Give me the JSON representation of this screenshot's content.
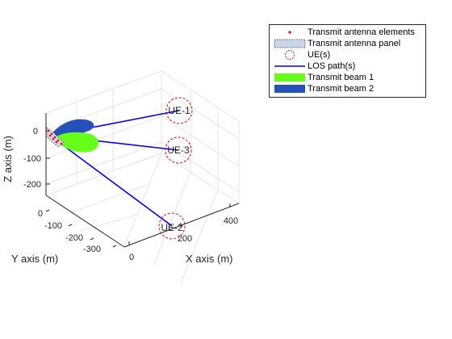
{
  "chart_data": {
    "type": "3d-scatter-line",
    "xlabel": "X axis (m)",
    "ylabel": "Y axis (m)",
    "zlabel": "Z axis (m)",
    "x_ticks": [
      "0",
      "200",
      "400"
    ],
    "y_ticks": [
      "0",
      "-100",
      "-200",
      "-300"
    ],
    "z_ticks": [
      "0",
      "-100",
      "-200"
    ],
    "grid": true,
    "legend_placement": "outside top-right",
    "transmitter": {
      "x": 0,
      "y": 0,
      "z": 0
    },
    "users": [
      {
        "label": "UE-1",
        "x": 300,
        "y": -100,
        "z": 80
      },
      {
        "label": "UE-3",
        "x": 300,
        "y": -150,
        "z": 0
      },
      {
        "label": "UE-2",
        "x": 220,
        "y": -330,
        "z": -60
      }
    ],
    "beams": [
      {
        "name": "Transmit beam 1",
        "target": "UE-3",
        "color": "#66ff1a"
      },
      {
        "name": "Transmit beam 2",
        "target": "UE-1",
        "color": "#2452b8"
      }
    ],
    "legend": [
      {
        "label": "Transmit antenna elements",
        "icon": "red-dot-marker"
      },
      {
        "label": "Transmit antenna panel",
        "icon": "dotted-panel-swatch"
      },
      {
        "label": "UE(s)",
        "icon": "red-dashed-circle"
      },
      {
        "label": "LOS path(s)",
        "icon": "blue-line"
      },
      {
        "label": "Transmit beam 1",
        "icon": "green-patch"
      },
      {
        "label": "Transmit beam 2",
        "icon": "blue-patch"
      }
    ],
    "colors": {
      "los_path": "#0000ff",
      "ue_circle": "#ff0000",
      "antenna_elements": "#ff0000",
      "beam1": "#66ff1a",
      "beam2": "#2452b8",
      "grid": "#e5e5e5"
    }
  }
}
